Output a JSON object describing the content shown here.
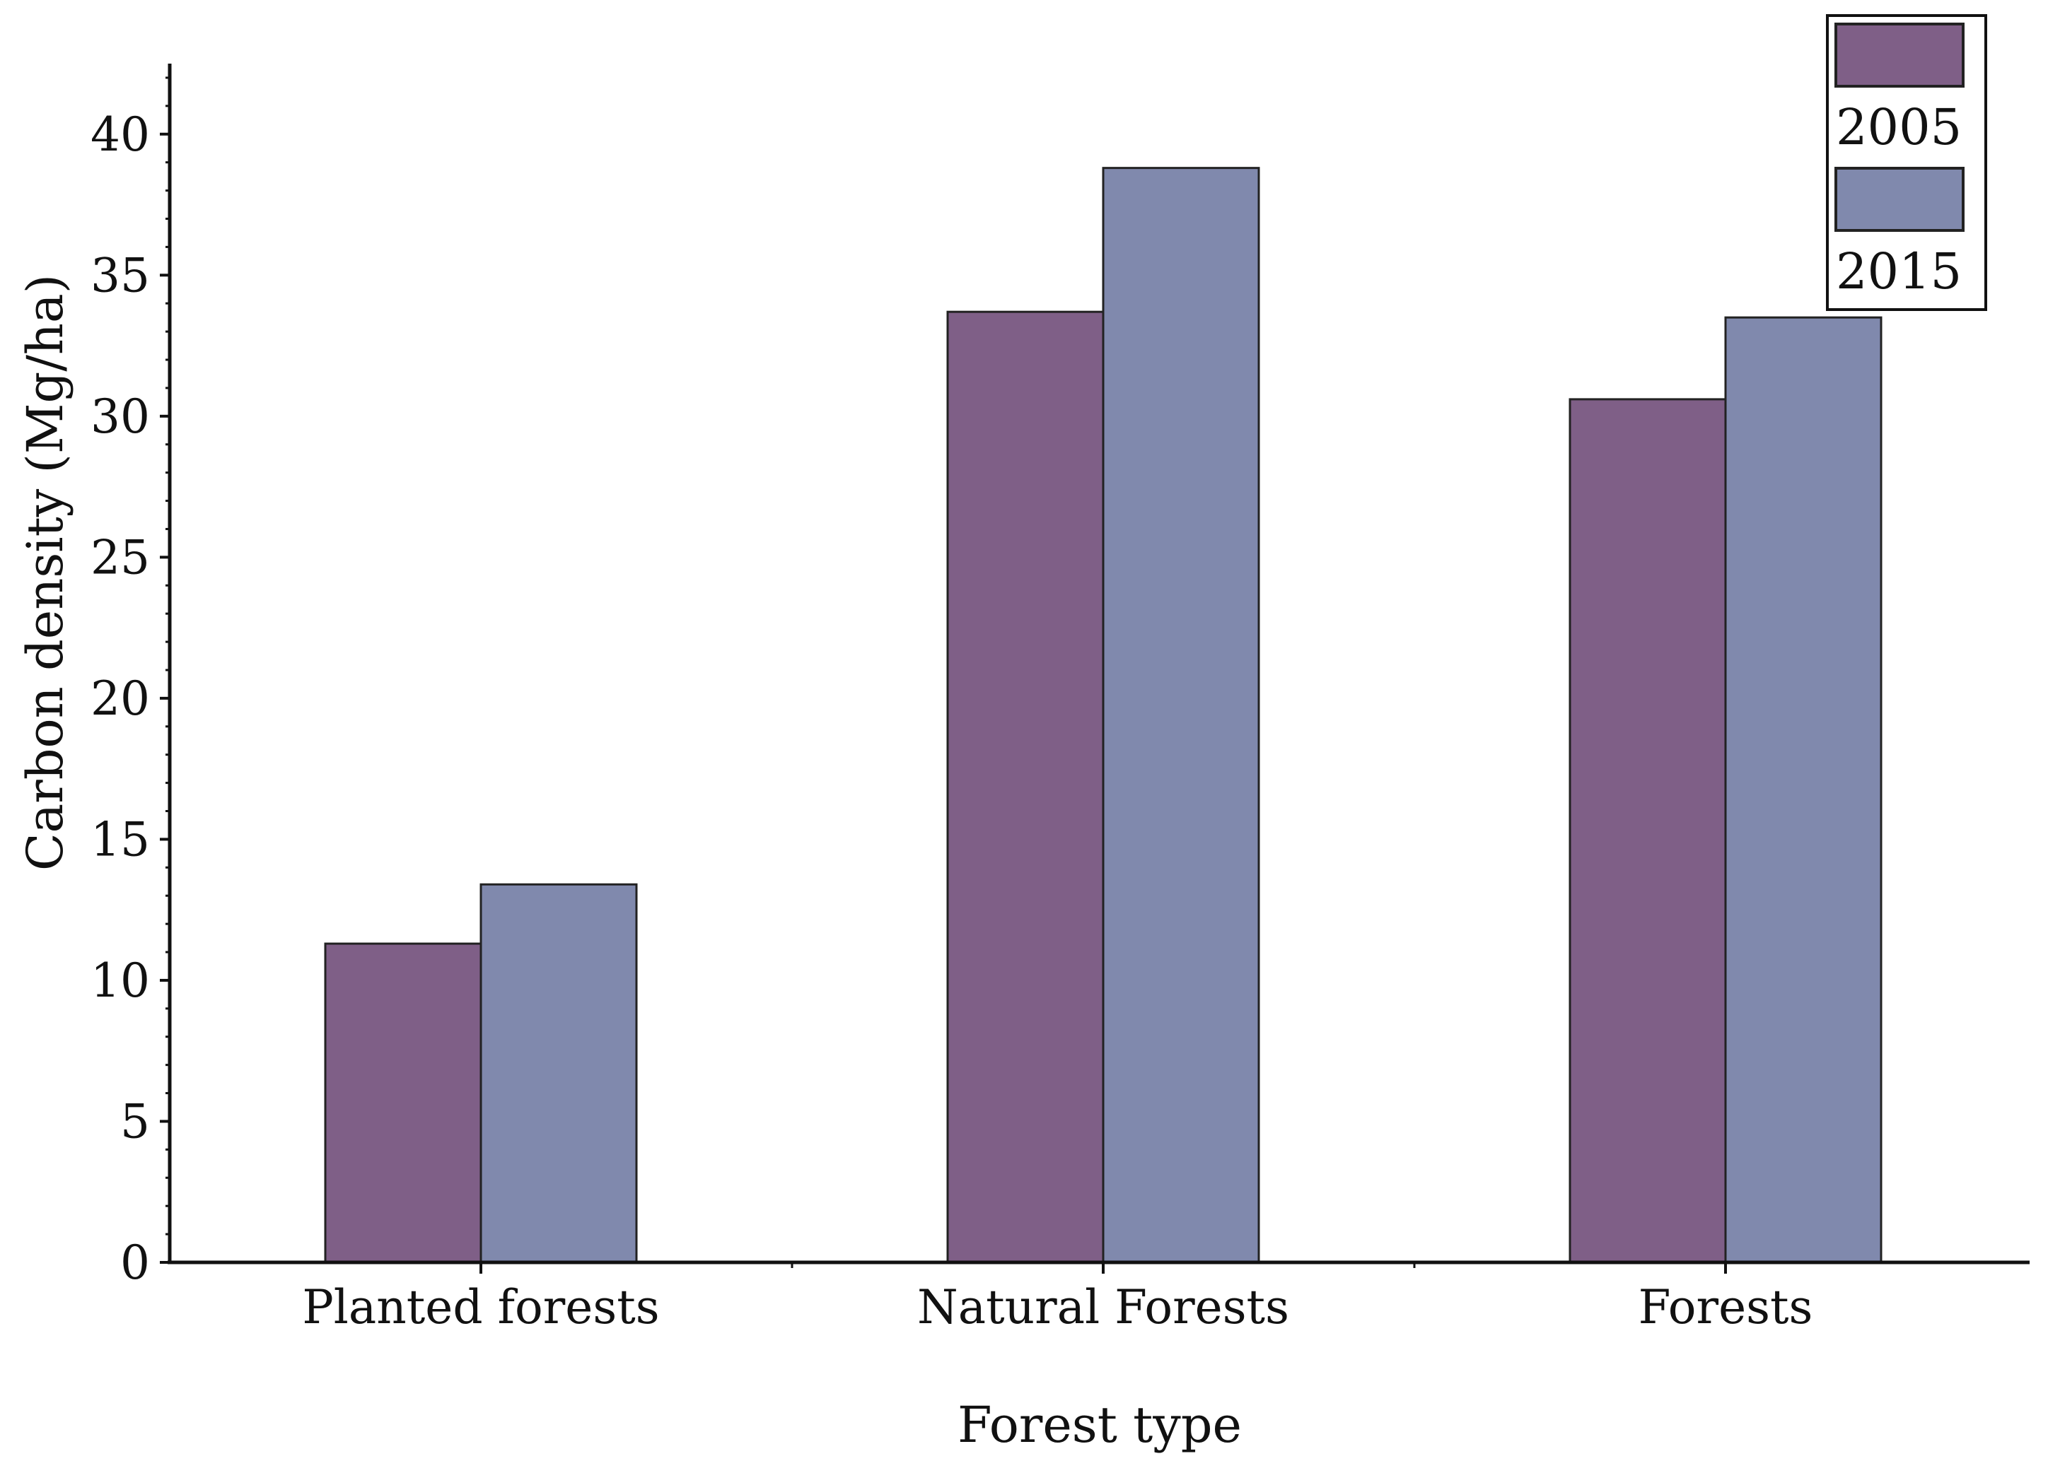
{
  "chart_data": {
    "type": "bar",
    "title": "",
    "xlabel": "Forest type",
    "ylabel": "Carbon density (Mg/ha)",
    "categories": [
      "Planted forests",
      "Natural Forests",
      "Forests"
    ],
    "series": [
      {
        "name": "2005",
        "color": "#7f5f87",
        "values": [
          11.3,
          33.7,
          30.6
        ]
      },
      {
        "name": "2015",
        "color": "#8089ad",
        "values": [
          13.4,
          38.8,
          33.5
        ]
      }
    ],
    "ylim": [
      0,
      42.5
    ],
    "yticks": [
      0,
      5,
      10,
      15,
      20,
      25,
      30,
      35,
      40
    ],
    "legend_position": "top-right",
    "grid": false
  }
}
